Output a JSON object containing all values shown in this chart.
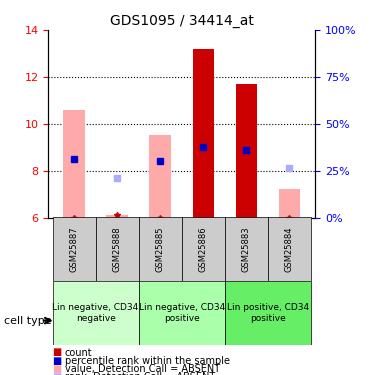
{
  "title": "GDS1095 / 34414_at",
  "samples": [
    "GSM25887",
    "GSM25888",
    "GSM25885",
    "GSM25886",
    "GSM25883",
    "GSM25884"
  ],
  "ylim": [
    6,
    14
  ],
  "yticks": [
    6,
    8,
    10,
    12,
    14
  ],
  "right_yticks": [
    0,
    25,
    50,
    75,
    100
  ],
  "right_ylim_labels": [
    "0%",
    "25%",
    "50%",
    "75%",
    "100%"
  ],
  "bar_bottom": 6,
  "red_bar_top": [
    null,
    null,
    null,
    13.2,
    11.7,
    null
  ],
  "pink_bar_top": [
    10.6,
    6.1,
    9.5,
    null,
    null,
    7.2
  ],
  "pink_bar_bottom": [
    6.0,
    6.0,
    6.0,
    null,
    null,
    6.0
  ],
  "blue_dot_y": [
    8.5,
    null,
    8.4,
    9.0,
    8.9,
    null
  ],
  "blue_dot_x": [
    0,
    null,
    2,
    3,
    4,
    null
  ],
  "light_blue_dot_y": [
    null,
    7.7,
    null,
    null,
    null,
    8.1
  ],
  "light_blue_dot_x": [
    null,
    1,
    null,
    null,
    null,
    5
  ],
  "red_star_y": [
    6.0,
    6.1,
    6.0,
    null,
    null,
    6.0
  ],
  "cell_groups": [
    {
      "label": "Lin negative, CD34\nnegative",
      "start": 0,
      "end": 2,
      "color": "#ccffcc"
    },
    {
      "label": "Lin negative, CD34\npositive",
      "start": 2,
      "end": 4,
      "color": "#aaffaa"
    },
    {
      "label": "Lin positive, CD34\npositive",
      "start": 4,
      "end": 6,
      "color": "#55ee55"
    }
  ],
  "colors": {
    "red_bar": "#cc0000",
    "pink_bar": "#ffaaaa",
    "blue_dot": "#0000cc",
    "light_blue_dot": "#aaaaff",
    "red_star": "#cc0000",
    "grid": "#888888"
  }
}
